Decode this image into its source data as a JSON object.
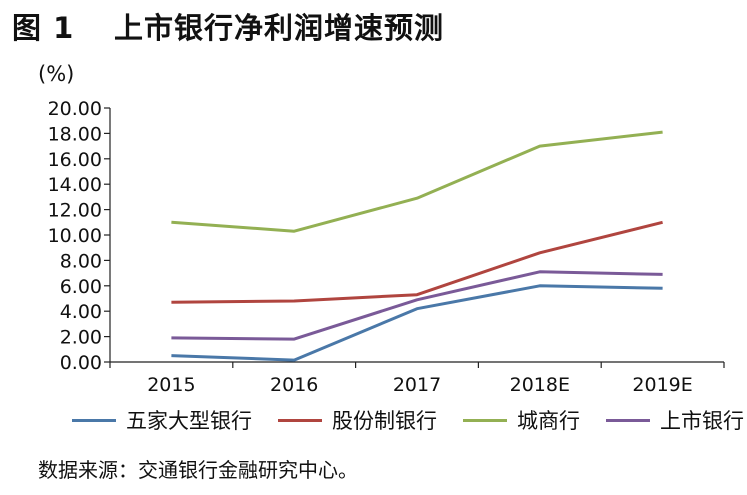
{
  "figure": {
    "label": "图 1",
    "title": "上市银行净利润增速预测",
    "unit": "(%)",
    "source": "数据来源：交通银行金融研究中心。"
  },
  "chart_data": {
    "type": "line",
    "title": "上市银行净利润增速预测",
    "xlabel": "",
    "ylabel": "(%)",
    "categories": [
      "2015",
      "2016",
      "2017",
      "2018E",
      "2019E"
    ],
    "ylim": [
      0,
      20
    ],
    "yticks": [
      "0.00",
      "2.00",
      "4.00",
      "6.00",
      "8.00",
      "10.00",
      "12.00",
      "14.00",
      "16.00",
      "18.00",
      "20.00"
    ],
    "grid": false,
    "legend_position": "bottom",
    "series": [
      {
        "name": "五家大型银行",
        "color": "#4a78a8",
        "values": [
          0.5,
          0.15,
          4.2,
          6.0,
          5.8
        ]
      },
      {
        "name": "股份制银行",
        "color": "#b0453f",
        "values": [
          4.7,
          4.8,
          5.3,
          8.6,
          11.0
        ]
      },
      {
        "name": "城商行",
        "color": "#93b053",
        "values": [
          11.0,
          10.3,
          12.9,
          17.0,
          18.1
        ]
      },
      {
        "name": "上市银行",
        "color": "#7a5a98",
        "values": [
          1.9,
          1.8,
          4.9,
          7.1,
          6.9
        ]
      }
    ]
  }
}
